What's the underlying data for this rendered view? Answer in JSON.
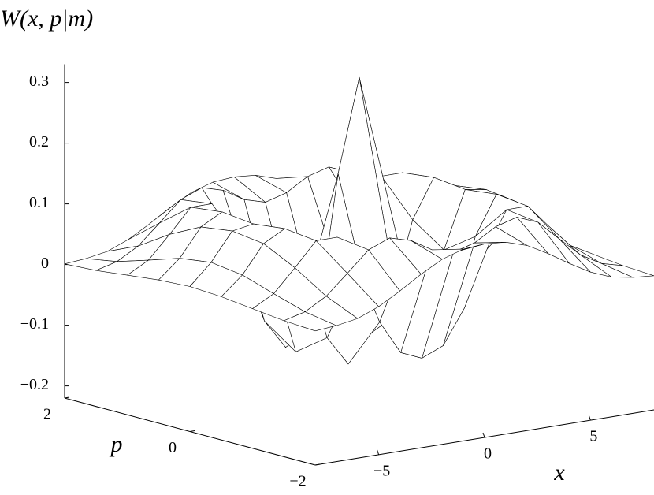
{
  "chart_data": {
    "type": "surface3d",
    "title": "W(x, p|m)",
    "xlabel": "x",
    "plabel": "p",
    "x": [
      -8,
      -7,
      -6,
      -5,
      -4,
      -3,
      -2,
      -1,
      0,
      1,
      2,
      3,
      4,
      5,
      6,
      7,
      8
    ],
    "p": [
      -2,
      -1.5,
      -1,
      -0.5,
      0,
      0.5,
      1,
      1.5,
      2
    ],
    "z": [
      [
        0.001,
        0.004,
        0.01,
        0.024,
        0.044,
        0.066,
        0.085,
        0.096,
        0.099,
        0.096,
        0.085,
        0.066,
        0.044,
        0.024,
        0.01,
        0.004,
        0.001
      ],
      [
        0.004,
        0.013,
        0.033,
        0.065,
        0.098,
        0.112,
        0.102,
        0.081,
        0.071,
        0.081,
        0.102,
        0.112,
        0.098,
        0.065,
        0.033,
        0.013,
        0.004
      ],
      [
        0.01,
        0.029,
        0.066,
        0.105,
        0.105,
        0.043,
        -0.046,
        -0.102,
        -0.117,
        -0.102,
        -0.046,
        0.043,
        0.105,
        0.105,
        0.066,
        0.029,
        0.01
      ],
      [
        0.016,
        0.046,
        0.092,
        0.111,
        0.047,
        -0.08,
        -0.129,
        -0.041,
        0.031,
        -0.041,
        -0.129,
        -0.08,
        0.047,
        0.111,
        0.092,
        0.046,
        0.016
      ],
      [
        0.019,
        0.053,
        0.099,
        0.105,
        0.011,
        -0.117,
        -0.078,
        0.165,
        0.318,
        0.165,
        -0.078,
        -0.117,
        0.011,
        0.105,
        0.099,
        0.053,
        0.019
      ],
      [
        0.016,
        0.046,
        0.092,
        0.111,
        0.047,
        -0.08,
        -0.129,
        -0.041,
        0.031,
        -0.041,
        -0.129,
        -0.08,
        0.047,
        0.111,
        0.092,
        0.046,
        0.016
      ],
      [
        0.01,
        0.029,
        0.066,
        0.105,
        0.105,
        0.043,
        -0.046,
        -0.102,
        -0.117,
        -0.102,
        -0.046,
        0.043,
        0.105,
        0.105,
        0.066,
        0.029,
        0.01
      ],
      [
        0.004,
        0.013,
        0.033,
        0.065,
        0.098,
        0.112,
        0.102,
        0.081,
        0.071,
        0.081,
        0.102,
        0.112,
        0.098,
        0.065,
        0.033,
        0.013,
        0.004
      ],
      [
        0.001,
        0.004,
        0.01,
        0.024,
        0.044,
        0.066,
        0.085,
        0.096,
        0.099,
        0.096,
        0.085,
        0.066,
        0.044,
        0.024,
        0.01,
        0.004,
        0.001
      ]
    ],
    "xlim": [
      -8,
      8
    ],
    "plim": [
      -2,
      2
    ],
    "zlim": [
      -0.22,
      0.33
    ],
    "xticks": [
      {
        "value": -5,
        "label": "−5"
      },
      0,
      5
    ],
    "pticks": [
      {
        "value": -2,
        "label": "−2"
      },
      0,
      2
    ],
    "zticks": [
      {
        "value": -0.2,
        "label": "−0.2"
      },
      {
        "value": -0.1,
        "label": "−0.1"
      },
      0,
      0.1,
      0.2,
      0.3
    ],
    "color": "#000000",
    "fill": "#ffffff"
  }
}
